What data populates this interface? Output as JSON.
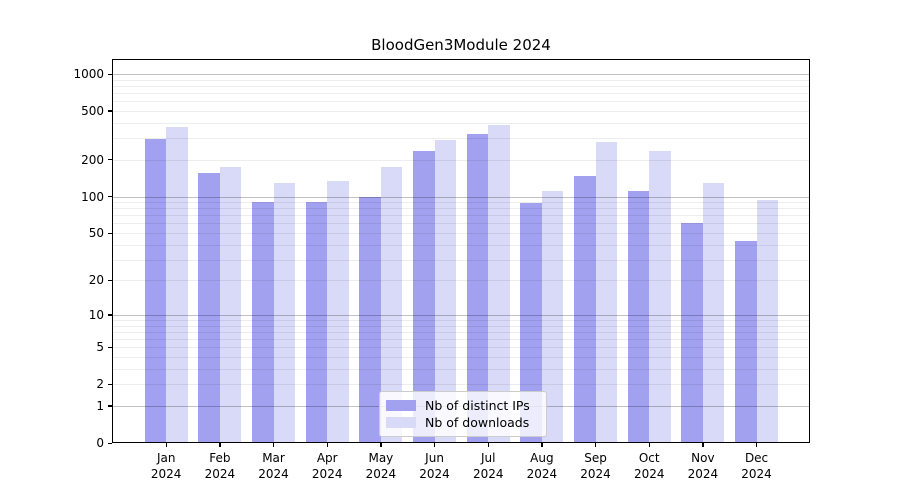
{
  "header": {
    "title": "BloodGen3Module 2024"
  },
  "chart_data": {
    "type": "bar",
    "title": "BloodGen3Module 2024",
    "categories": [
      "Jan",
      "Feb",
      "Mar",
      "Apr",
      "May",
      "Jun",
      "Jul",
      "Aug",
      "Sep",
      "Oct",
      "Nov",
      "Dec"
    ],
    "year_label": "2024",
    "series": [
      {
        "name": "Nb of distinct IPs",
        "color": "#a1a1ef",
        "values": [
          295,
          157,
          90,
          90,
          100,
          237,
          322,
          89,
          148,
          111,
          60,
          43
        ]
      },
      {
        "name": "Nb of downloads",
        "color": "#d9d9f8",
        "values": [
          370,
          175,
          130,
          135,
          175,
          290,
          385,
          110,
          277,
          235,
          128,
          94
        ]
      }
    ],
    "y_axis": {
      "scale": "log1p",
      "ticks": [
        0,
        1,
        2,
        5,
        10,
        20,
        50,
        100,
        200,
        500,
        1000
      ],
      "top_value": 1325
    },
    "xlabel": "",
    "ylabel": "",
    "grid": true,
    "legend_position": "lower center"
  }
}
